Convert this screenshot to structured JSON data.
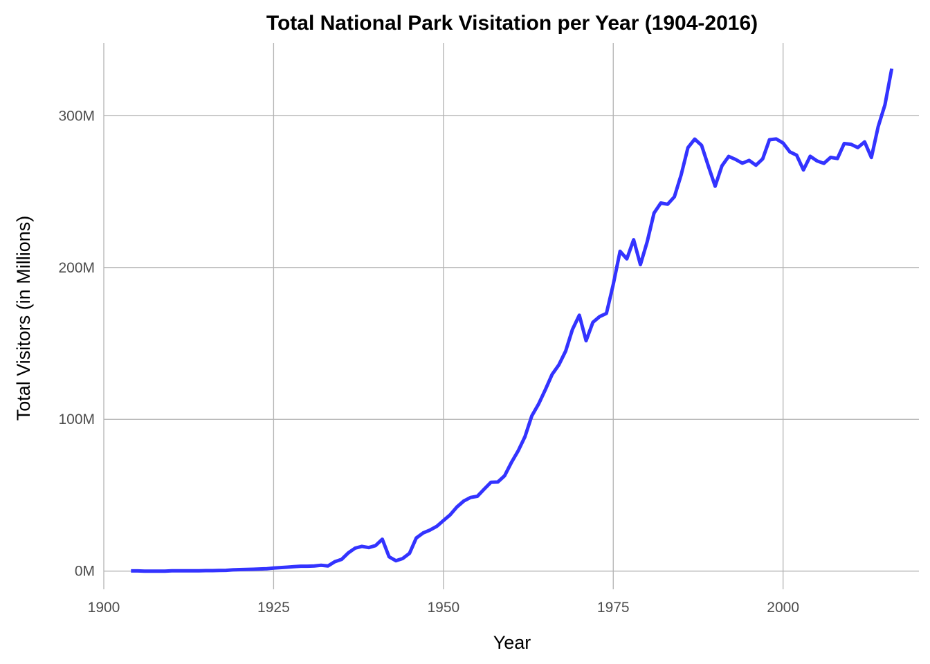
{
  "chart_data": {
    "type": "line",
    "title": "Total National Park Visitation per Year (1904-2016)",
    "xlabel": "Year",
    "ylabel": "Total Visitors (in Millions)",
    "xlim": [
      1900,
      2020
    ],
    "ylim": [
      -12,
      348
    ],
    "x_ticks": [
      1900,
      1925,
      1950,
      1975,
      2000
    ],
    "x_tick_labels": [
      "1900",
      "1925",
      "1950",
      "1975",
      "2000"
    ],
    "y_ticks": [
      0,
      100,
      200,
      300
    ],
    "y_tick_labels": [
      "0M",
      "100M",
      "200M",
      "300M"
    ],
    "grid": true,
    "legend": "none",
    "colors": {
      "line": "#3333ff",
      "grid": "#b3b3b3",
      "tick_text": "#4d4d4d",
      "text": "#000000"
    },
    "series": [
      {
        "x": [
          1904,
          1905,
          1906,
          1907,
          1908,
          1909,
          1910,
          1911,
          1912,
          1913,
          1914,
          1915,
          1916,
          1917,
          1918,
          1919,
          1920,
          1921,
          1922,
          1923,
          1924,
          1925,
          1926,
          1927,
          1928,
          1929,
          1930,
          1931,
          1932,
          1933,
          1934,
          1935,
          1936,
          1937,
          1938,
          1939,
          1940,
          1941,
          1942,
          1943,
          1944,
          1945,
          1946,
          1947,
          1948,
          1949,
          1950,
          1951,
          1952,
          1953,
          1954,
          1955,
          1956,
          1957,
          1958,
          1959,
          1960,
          1961,
          1962,
          1963,
          1964,
          1965,
          1966,
          1967,
          1968,
          1969,
          1970,
          1971,
          1972,
          1973,
          1974,
          1975,
          1976,
          1977,
          1978,
          1979,
          1980,
          1981,
          1982,
          1983,
          1984,
          1985,
          1986,
          1987,
          1988,
          1989,
          1990,
          1991,
          1992,
          1993,
          1994,
          1995,
          1996,
          1997,
          1998,
          1999,
          2000,
          2001,
          2002,
          2003,
          2004,
          2005,
          2006,
          2007,
          2008,
          2009,
          2010,
          2011,
          2012,
          2013,
          2014,
          2015,
          2016
        ],
        "values": [
          0.1,
          0.1,
          0.0,
          0.0,
          0.0,
          0.0,
          0.2,
          0.2,
          0.2,
          0.2,
          0.2,
          0.3,
          0.3,
          0.4,
          0.5,
          0.8,
          1.0,
          1.1,
          1.2,
          1.4,
          1.6,
          2.0,
          2.3,
          2.6,
          2.9,
          3.2,
          3.2,
          3.4,
          3.8,
          3.4,
          6.2,
          7.7,
          12.0,
          15.1,
          16.3,
          15.5,
          16.8,
          21.0,
          9.4,
          6.8,
          8.3,
          11.7,
          21.8,
          25.1,
          27.0,
          29.4,
          33.3,
          37.1,
          42.3,
          46.2,
          48.5,
          49.3,
          54.0,
          58.5,
          58.7,
          62.8,
          71.5,
          79.2,
          88.5,
          102.2,
          110.0,
          119.5,
          129.6,
          135.9,
          145.0,
          159.2,
          168.6,
          151.8,
          163.9,
          167.7,
          169.8,
          189.0,
          210.7,
          205.7,
          218.3,
          201.9,
          217.0,
          235.9,
          242.5,
          241.7,
          246.6,
          261.1,
          279.0,
          284.6,
          280.5,
          266.8,
          253.6,
          267.0,
          273.2,
          271.2,
          268.7,
          270.6,
          267.4,
          271.6,
          284.2,
          284.7,
          282.0,
          276.2,
          274.0,
          264.3,
          273.3,
          270.2,
          268.6,
          272.6,
          271.8,
          281.7,
          281.2,
          279.0,
          282.8,
          272.5,
          292.8,
          307.2,
          331.0
        ]
      }
    ]
  }
}
